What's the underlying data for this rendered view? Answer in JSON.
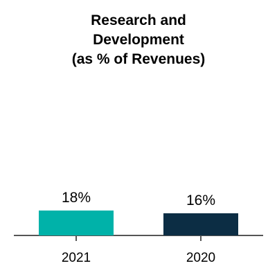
{
  "chart_data": {
    "type": "bar",
    "title_lines": [
      "Research and",
      "Development",
      "(as % of Revenues)"
    ],
    "categories": [
      "2021",
      "2020"
    ],
    "values": [
      18,
      16
    ],
    "value_labels": [
      "18%",
      "16%"
    ],
    "colors": [
      "#00b2a9",
      "#0c2d44"
    ],
    "axis_color": "#555555",
    "ylim": [
      0,
      100
    ],
    "grid": false
  }
}
